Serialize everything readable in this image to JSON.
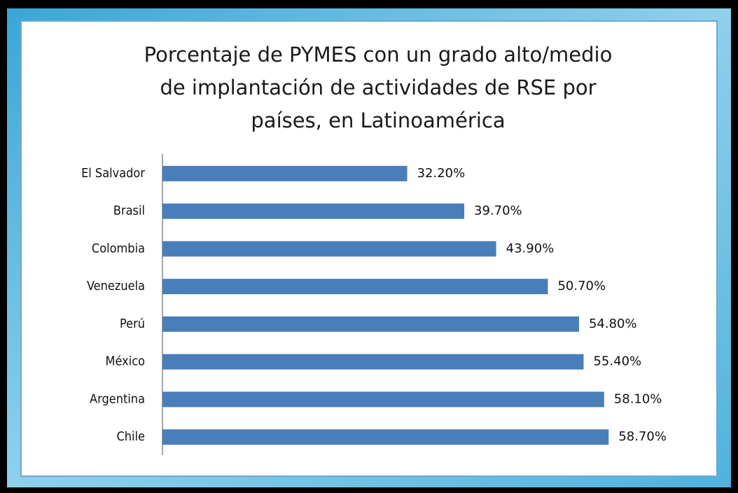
{
  "chart_data": {
    "type": "barh",
    "title": [
      "Porcentaje de PYMES con un grado alto/medio",
      "de implantación de actividades de RSE por",
      "países, en Latinoamérica"
    ],
    "categories": [
      "El Salvador",
      "Brasil",
      "Colombia",
      "Venezuela",
      "Perú",
      "México",
      "Argentina",
      "Chile"
    ],
    "values": [
      32.2,
      39.7,
      43.9,
      50.7,
      54.8,
      55.4,
      58.1,
      58.7
    ],
    "value_labels": [
      "32.20%",
      "39.70%",
      "43.90%",
      "50.70%",
      "54.80%",
      "55.40%",
      "58.10%",
      "58.70%"
    ],
    "color": "#4a7ebb",
    "xlim": [
      0,
      70
    ]
  }
}
